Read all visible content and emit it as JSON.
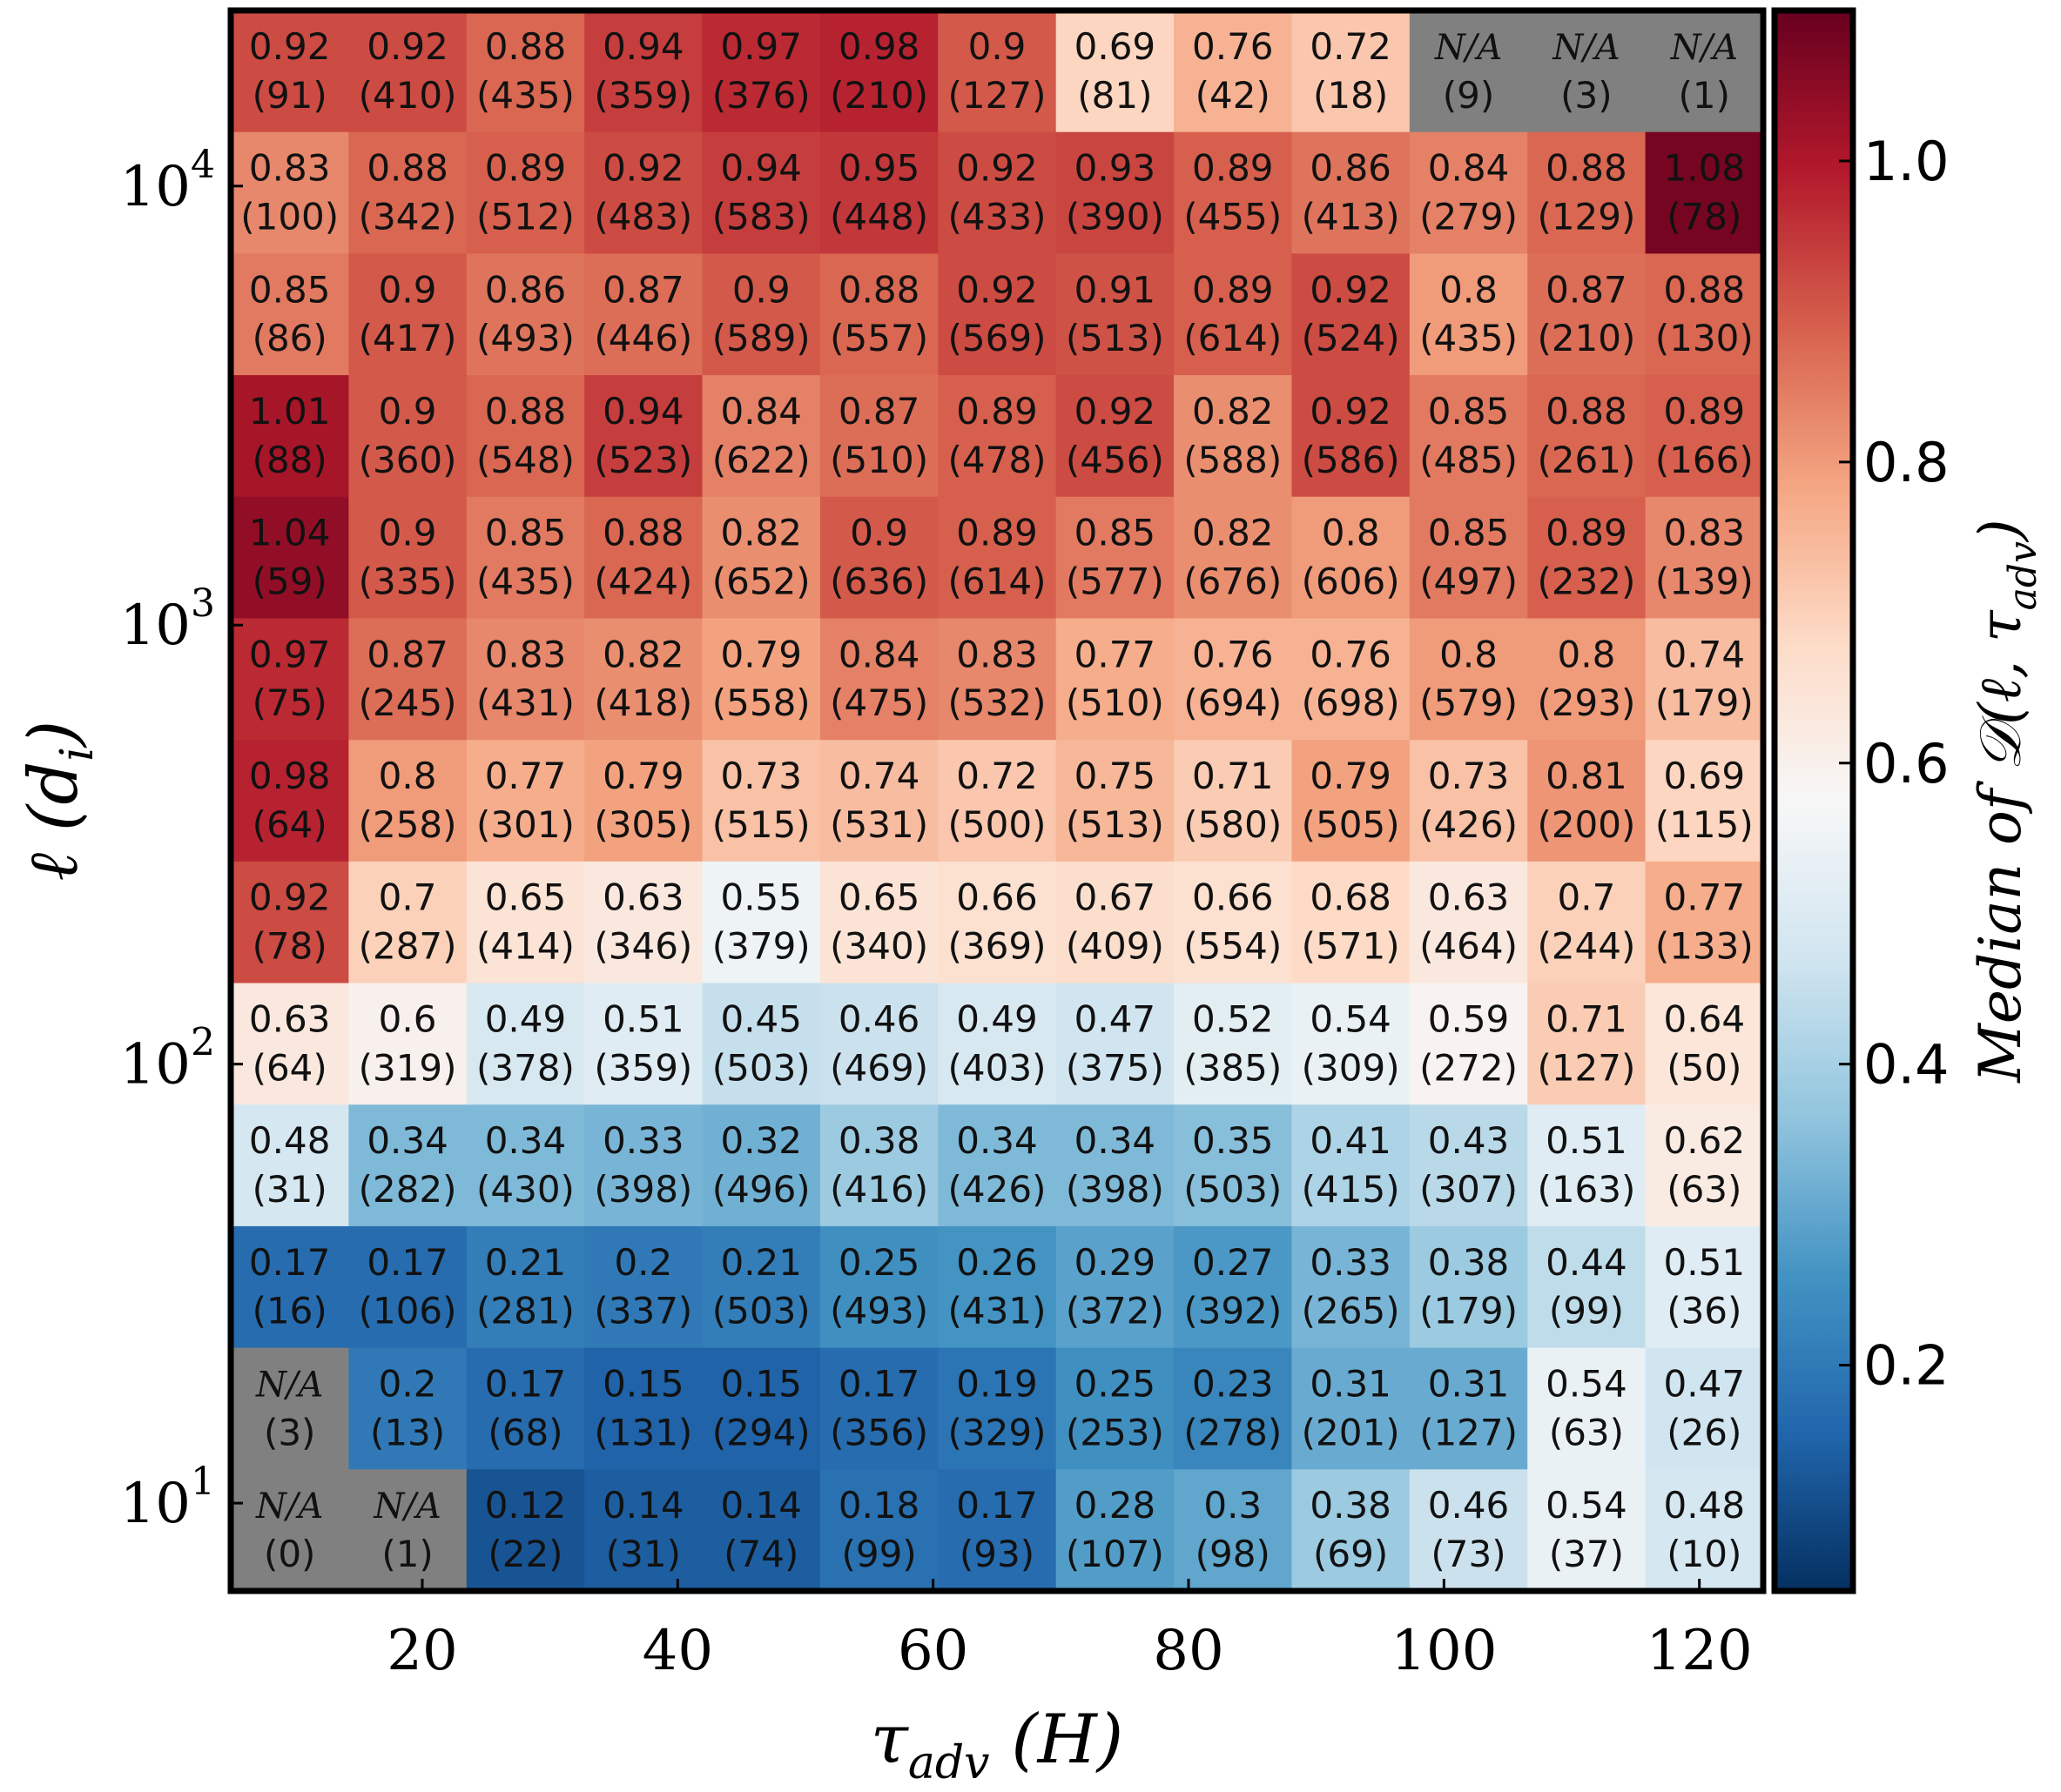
{
  "chart_data": {
    "type": "heatmap",
    "xlabel": "τadv (H)",
    "xlabel_parts": {
      "base": "τ",
      "sub": "adv",
      "rest": " (H)"
    },
    "ylabel": "ℓ (di)",
    "ylabel_parts": {
      "base": "ℓ (d",
      "sub": "i",
      "rest": ")"
    },
    "colorbar_label": "Median of 𝒟(ℓ, τadv)",
    "colorbar_label_parts": {
      "base": "Median of 𝒟(ℓ, τ",
      "sub": "adv",
      "rest": ")"
    },
    "colormap": "RdBu_r",
    "vmin": 0.05,
    "vmax": 1.1,
    "na_color": "#808080",
    "x_ticks": [
      {
        "label": "20",
        "value": 20
      },
      {
        "label": "40",
        "value": 40
      },
      {
        "label": "60",
        "value": 60
      },
      {
        "label": "80",
        "value": 80
      },
      {
        "label": "100",
        "value": 100
      },
      {
        "label": "120",
        "value": 120
      }
    ],
    "x_range": [
      5,
      125
    ],
    "y_ticks": [
      {
        "base": "10",
        "exp": "4",
        "value": 4
      },
      {
        "base": "10",
        "exp": "3",
        "value": 3
      },
      {
        "base": "10",
        "exp": "2",
        "value": 2
      },
      {
        "base": "10",
        "exp": "1",
        "value": 1
      }
    ],
    "y_log_range": [
      0.8,
      4.4
    ],
    "colorbar_ticks": [
      {
        "label": "1.0",
        "value": 1.0
      },
      {
        "label": "0.8",
        "value": 0.8
      },
      {
        "label": "0.6",
        "value": 0.6
      },
      {
        "label": "0.4",
        "value": 0.4
      },
      {
        "label": "0.2",
        "value": 0.2
      }
    ],
    "rows": [
      {
        "values": [
          "0.92",
          "0.92",
          "0.88",
          "0.94",
          "0.97",
          "0.98",
          "0.9",
          "0.69",
          "0.76",
          "0.72",
          "N/A",
          "N/A",
          "N/A"
        ],
        "counts": [
          "(91)",
          "(410)",
          "(435)",
          "(359)",
          "(376)",
          "(210)",
          "(127)",
          "(81)",
          "(42)",
          "(18)",
          "(9)",
          "(3)",
          "(1)"
        ]
      },
      {
        "values": [
          "0.83",
          "0.88",
          "0.89",
          "0.92",
          "0.94",
          "0.95",
          "0.92",
          "0.93",
          "0.89",
          "0.86",
          "0.84",
          "0.88",
          "1.08"
        ],
        "counts": [
          "(100)",
          "(342)",
          "(512)",
          "(483)",
          "(583)",
          "(448)",
          "(433)",
          "(390)",
          "(455)",
          "(413)",
          "(279)",
          "(129)",
          "(78)"
        ]
      },
      {
        "values": [
          "0.85",
          "0.9",
          "0.86",
          "0.87",
          "0.9",
          "0.88",
          "0.92",
          "0.91",
          "0.89",
          "0.92",
          "0.8",
          "0.87",
          "0.88"
        ],
        "counts": [
          "(86)",
          "(417)",
          "(493)",
          "(446)",
          "(589)",
          "(557)",
          "(569)",
          "(513)",
          "(614)",
          "(524)",
          "(435)",
          "(210)",
          "(130)"
        ]
      },
      {
        "values": [
          "1.01",
          "0.9",
          "0.88",
          "0.94",
          "0.84",
          "0.87",
          "0.89",
          "0.92",
          "0.82",
          "0.92",
          "0.85",
          "0.88",
          "0.89"
        ],
        "counts": [
          "(88)",
          "(360)",
          "(548)",
          "(523)",
          "(622)",
          "(510)",
          "(478)",
          "(456)",
          "(588)",
          "(586)",
          "(485)",
          "(261)",
          "(166)"
        ]
      },
      {
        "values": [
          "1.04",
          "0.9",
          "0.85",
          "0.88",
          "0.82",
          "0.9",
          "0.89",
          "0.85",
          "0.82",
          "0.8",
          "0.85",
          "0.89",
          "0.83"
        ],
        "counts": [
          "(59)",
          "(335)",
          "(435)",
          "(424)",
          "(652)",
          "(636)",
          "(614)",
          "(577)",
          "(676)",
          "(606)",
          "(497)",
          "(232)",
          "(139)"
        ]
      },
      {
        "values": [
          "0.97",
          "0.87",
          "0.83",
          "0.82",
          "0.79",
          "0.84",
          "0.83",
          "0.77",
          "0.76",
          "0.76",
          "0.8",
          "0.8",
          "0.74"
        ],
        "counts": [
          "(75)",
          "(245)",
          "(431)",
          "(418)",
          "(558)",
          "(475)",
          "(532)",
          "(510)",
          "(694)",
          "(698)",
          "(579)",
          "(293)",
          "(179)"
        ]
      },
      {
        "values": [
          "0.98",
          "0.8",
          "0.77",
          "0.79",
          "0.73",
          "0.74",
          "0.72",
          "0.75",
          "0.71",
          "0.79",
          "0.73",
          "0.81",
          "0.69"
        ],
        "counts": [
          "(64)",
          "(258)",
          "(301)",
          "(305)",
          "(515)",
          "(531)",
          "(500)",
          "(513)",
          "(580)",
          "(505)",
          "(426)",
          "(200)",
          "(115)"
        ]
      },
      {
        "values": [
          "0.92",
          "0.7",
          "0.65",
          "0.63",
          "0.55",
          "0.65",
          "0.66",
          "0.67",
          "0.66",
          "0.68",
          "0.63",
          "0.7",
          "0.77"
        ],
        "counts": [
          "(78)",
          "(287)",
          "(414)",
          "(346)",
          "(379)",
          "(340)",
          "(369)",
          "(409)",
          "(554)",
          "(571)",
          "(464)",
          "(244)",
          "(133)"
        ]
      },
      {
        "values": [
          "0.63",
          "0.6",
          "0.49",
          "0.51",
          "0.45",
          "0.46",
          "0.49",
          "0.47",
          "0.52",
          "0.54",
          "0.59",
          "0.71",
          "0.64"
        ],
        "counts": [
          "(64)",
          "(319)",
          "(378)",
          "(359)",
          "(503)",
          "(469)",
          "(403)",
          "(375)",
          "(385)",
          "(309)",
          "(272)",
          "(127)",
          "(50)"
        ]
      },
      {
        "values": [
          "0.48",
          "0.34",
          "0.34",
          "0.33",
          "0.32",
          "0.38",
          "0.34",
          "0.34",
          "0.35",
          "0.41",
          "0.43",
          "0.51",
          "0.62"
        ],
        "counts": [
          "(31)",
          "(282)",
          "(430)",
          "(398)",
          "(496)",
          "(416)",
          "(426)",
          "(398)",
          "(503)",
          "(415)",
          "(307)",
          "(163)",
          "(63)"
        ]
      },
      {
        "values": [
          "0.17",
          "0.17",
          "0.21",
          "0.2",
          "0.21",
          "0.25",
          "0.26",
          "0.29",
          "0.27",
          "0.33",
          "0.38",
          "0.44",
          "0.51"
        ],
        "counts": [
          "(16)",
          "(106)",
          "(281)",
          "(337)",
          "(503)",
          "(493)",
          "(431)",
          "(372)",
          "(392)",
          "(265)",
          "(179)",
          "(99)",
          "(36)"
        ]
      },
      {
        "values": [
          "N/A",
          "0.2",
          "0.17",
          "0.15",
          "0.15",
          "0.17",
          "0.19",
          "0.25",
          "0.23",
          "0.31",
          "0.31",
          "0.54",
          "0.47"
        ],
        "counts": [
          "(3)",
          "(13)",
          "(68)",
          "(131)",
          "(294)",
          "(356)",
          "(329)",
          "(253)",
          "(278)",
          "(201)",
          "(127)",
          "(63)",
          "(26)"
        ]
      },
      {
        "values": [
          "N/A",
          "N/A",
          "0.12",
          "0.14",
          "0.14",
          "0.18",
          "0.17",
          "0.28",
          "0.3",
          "0.38",
          "0.46",
          "0.54",
          "0.48"
        ],
        "counts": [
          "(0)",
          "(1)",
          "(22)",
          "(31)",
          "(74)",
          "(99)",
          "(93)",
          "(107)",
          "(98)",
          "(69)",
          "(73)",
          "(37)",
          "(10)"
        ]
      }
    ]
  }
}
